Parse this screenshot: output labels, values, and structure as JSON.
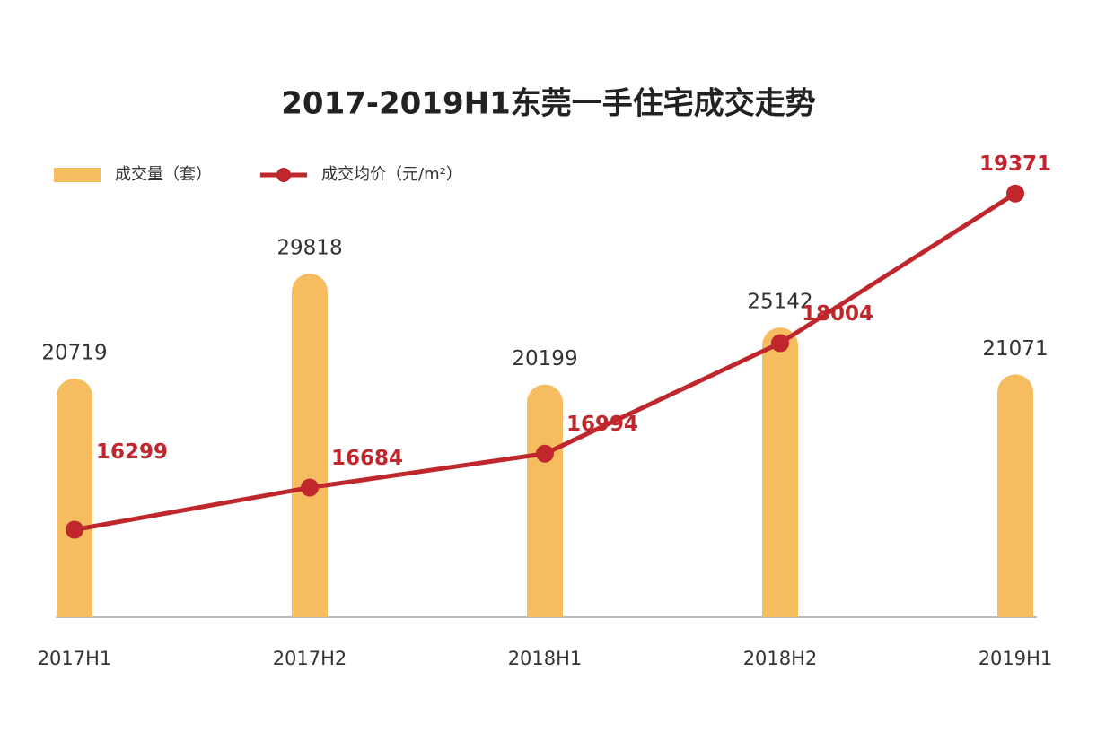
{
  "chart_data": {
    "type": "bar",
    "title": "2017-2019H1东莞一手住宅成交走势",
    "categories": [
      "2017H1",
      "2017H2",
      "2018H1",
      "2018H2",
      "2019H1"
    ],
    "series": [
      {
        "name": "成交量（套）",
        "type": "bar",
        "color": "#f6bd60",
        "values": [
          20719,
          29818,
          20199,
          25142,
          21071
        ]
      },
      {
        "name": "成交均价（元/m²）",
        "type": "line",
        "axis": "y2",
        "color": "#c0272d",
        "values": [
          16299,
          16684,
          16994,
          18004,
          19371
        ]
      }
    ],
    "ylim": [
      0,
      38000
    ],
    "y2lim": [
      15500,
      19500
    ],
    "legend": "top-left"
  }
}
